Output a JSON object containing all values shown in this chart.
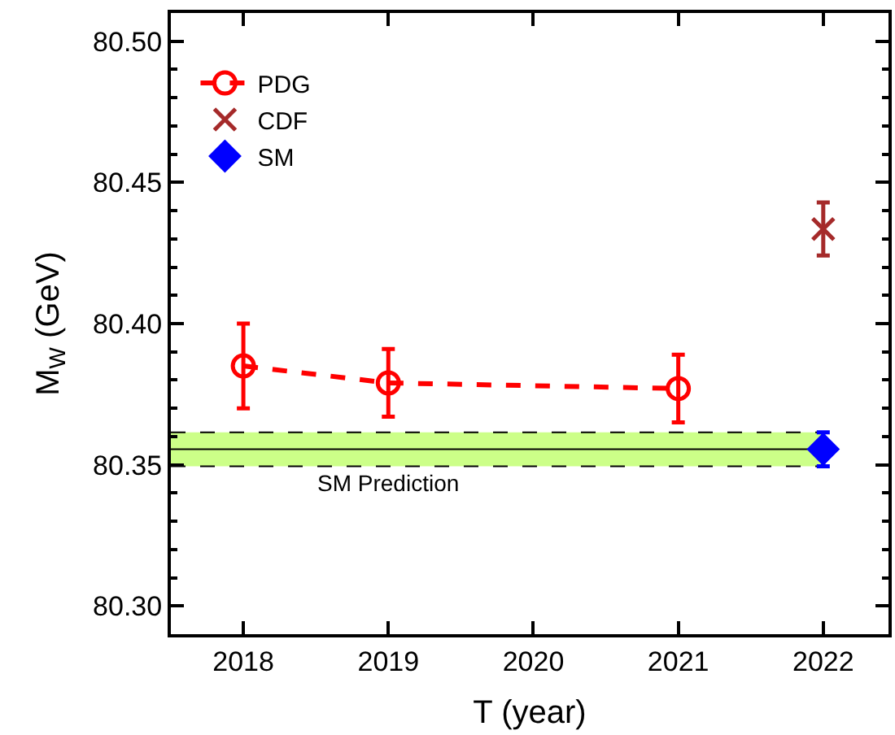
{
  "chart_data": {
    "type": "line",
    "xlabel": "T (year)",
    "ylabel": "M$_{W}$ (GeV)",
    "xlim": [
      2017.5,
      2022.45
    ],
    "xticks": [
      2018,
      2019,
      2020,
      2021,
      2022
    ],
    "ylim": [
      80.29,
      80.51
    ],
    "yticks": [
      {
        "value": 80.3,
        "label": "80.30"
      },
      {
        "value": 80.35,
        "label": "80.35"
      },
      {
        "value": 80.4,
        "label": "80.40"
      },
      {
        "value": 80.45,
        "label": "80.45"
      },
      {
        "value": 80.5,
        "label": "80.50"
      }
    ],
    "legend": "top left",
    "series": [
      {
        "name": "PDG",
        "color": "#ff0000",
        "marker": "circle",
        "line_style": "dashed",
        "x": [
          2018,
          2019,
          2021
        ],
        "values": [
          80.385,
          80.379,
          80.377
        ],
        "errors": [
          0.015,
          0.012,
          0.012
        ]
      },
      {
        "name": "CDF",
        "type": "scatter",
        "color": "#a52a2a",
        "marker": "cross",
        "x": [
          2022
        ],
        "values": [
          80.4335
        ],
        "errors": [
          0.0094
        ]
      },
      {
        "name": "SM",
        "type": "scatter",
        "color": "#0000ff",
        "marker": "diamond",
        "x": [
          2022
        ],
        "values": [
          80.3555
        ],
        "errors": [
          0.006
        ]
      }
    ],
    "ref_lines": [
      {
        "axis": "y",
        "value": 80.3555,
        "color": "#000000",
        "line_style": "solid"
      }
    ],
    "bands": [
      {
        "axis": "y",
        "from": 80.3495,
        "to": 80.3615,
        "label": "SM Prediction",
        "color": "#ccff88"
      }
    ]
  }
}
